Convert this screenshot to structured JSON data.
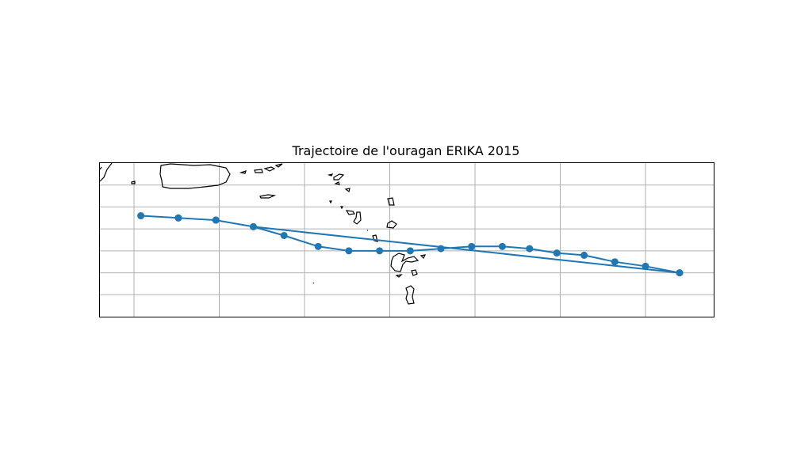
{
  "title": "Trajectoire de l'ouragan ERIKA 2015",
  "chart_data": {
    "type": "line",
    "title": "Trajectoire de l'ouragan ERIKA 2015",
    "xlabel": "",
    "ylabel": "",
    "xlim": [
      -69.0,
      -51.0
    ],
    "ylim": [
      13.0,
      20.0
    ],
    "grid": true,
    "series": [
      {
        "color": "#1f77b4",
        "marker": "circle",
        "points": [
          {
            "lon": -52.0,
            "lat": 15.0
          },
          {
            "lon": -53.0,
            "lat": 15.3
          },
          {
            "lon": -53.9,
            "lat": 15.5
          },
          {
            "lon": -54.8,
            "lat": 15.8
          },
          {
            "lon": -55.6,
            "lat": 15.9
          },
          {
            "lon": -56.4,
            "lat": 16.1
          },
          {
            "lon": -57.2,
            "lat": 16.2
          },
          {
            "lon": -58.1,
            "lat": 16.2
          },
          {
            "lon": -59.0,
            "lat": 16.1
          },
          {
            "lon": -59.9,
            "lat": 16.0
          },
          {
            "lon": -60.8,
            "lat": 16.0
          },
          {
            "lon": -61.7,
            "lat": 16.0
          },
          {
            "lon": -62.6,
            "lat": 16.2
          },
          {
            "lon": -63.6,
            "lat": 16.7
          },
          {
            "lon": -64.5,
            "lat": 17.1
          },
          {
            "lon": -65.6,
            "lat": 17.4
          },
          {
            "lon": -66.7,
            "lat": 17.5
          },
          {
            "lon": -67.8,
            "lat": 17.6
          },
          {
            "lon": -66.7,
            "lat": 17.5
          },
          {
            "lon": -65.6,
            "lat": 17.4
          },
          {
            "lon": -64.5,
            "lat": 17.1
          },
          {
            "lon": -52.0,
            "lat": 15.0
          }
        ]
      }
    ]
  }
}
